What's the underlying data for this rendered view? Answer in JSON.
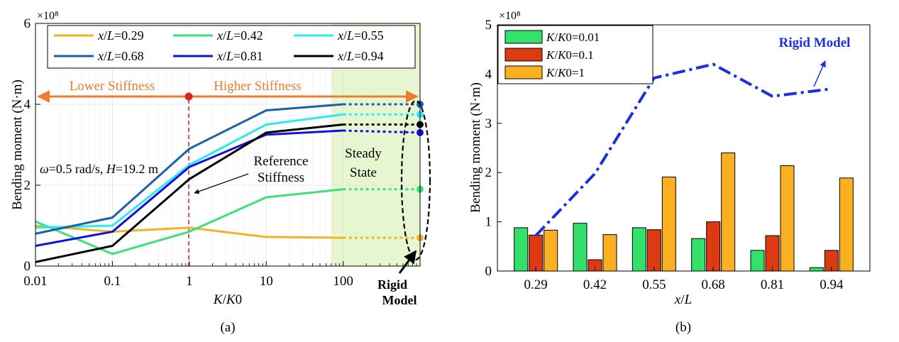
{
  "chart_data": [
    {
      "panel": "a",
      "type": "line",
      "xscale": "log",
      "xlabel": "K/K0",
      "ylabel": "Bending moment (N·m)",
      "exponent_label": "×10⁸",
      "panel_label": "(a)",
      "x": [
        0.01,
        0.1,
        1,
        10,
        100
      ],
      "x_rigid": 1000,
      "xticks": [
        "0.01",
        "0.1",
        "1",
        "10",
        "100"
      ],
      "ylim": [
        0,
        6
      ],
      "yticks": [
        "0",
        "2",
        "4",
        "6"
      ],
      "series": [
        {
          "name": "x/L=0.29",
          "color": "#f2b424",
          "values": [
            1.0,
            0.85,
            0.95,
            0.72,
            0.7
          ],
          "rigid": 0.7
        },
        {
          "name": "x/L=0.42",
          "color": "#3ee07a",
          "values": [
            1.1,
            0.3,
            0.85,
            1.7,
            1.9
          ],
          "rigid": 1.9
        },
        {
          "name": "x/L=0.55",
          "color": "#2ee8f2",
          "values": [
            0.95,
            1.0,
            2.5,
            3.5,
            3.75
          ],
          "rigid": 3.75
        },
        {
          "name": "x/L=0.68",
          "color": "#1a5fa8",
          "values": [
            0.8,
            1.2,
            2.9,
            3.85,
            4.0
          ],
          "rigid": 4.0
        },
        {
          "name": "x/L=0.81",
          "color": "#1010e0",
          "values": [
            0.5,
            0.85,
            2.45,
            3.25,
            3.35
          ],
          "rigid": 3.3
        },
        {
          "name": "x/L=0.94",
          "color": "#000000",
          "values": [
            0.1,
            0.5,
            2.15,
            3.3,
            3.5
          ],
          "rigid": 3.5
        }
      ],
      "annotations": {
        "lower_stiffness": "Lower Stiffness",
        "higher_stiffness": "Higher Stiffness",
        "condition": "ω=0.5 rad/s, H=19.2 m",
        "reference_line1": "Reference",
        "reference_line2": "Stiffness",
        "steady_line1": "Steady",
        "steady_line2": "State",
        "rigid_line1": "Rigid",
        "rigid_line2": "Model"
      },
      "colors": {
        "arrow": "#ee7b30",
        "reference": "#e02020",
        "steady_fill": "#e6f7cf"
      }
    },
    {
      "panel": "b",
      "type": "bar",
      "xlabel": "x/L",
      "ylabel": "Bending moment (N·m)",
      "exponent_label": "×10⁸",
      "panel_label": "(b)",
      "categories": [
        "0.29",
        "0.42",
        "0.55",
        "0.68",
        "0.81",
        "0.94"
      ],
      "ylim": [
        0,
        5
      ],
      "yticks": [
        "0",
        "1",
        "2",
        "3",
        "4",
        "5"
      ],
      "series": [
        {
          "name": "K/K0=0.01",
          "color": "#33e06a",
          "values": [
            0.88,
            0.97,
            0.88,
            0.66,
            0.42,
            0.07
          ]
        },
        {
          "name": "K/K0=0.1",
          "color": "#de3a12",
          "values": [
            0.73,
            0.23,
            0.84,
            1.0,
            0.72,
            0.42
          ]
        },
        {
          "name": "K/K0=1",
          "color": "#fbb022",
          "values": [
            0.83,
            0.74,
            1.91,
            2.4,
            2.14,
            1.89
          ]
        }
      ],
      "rigid_model": {
        "name": "Rigid Model",
        "color": "#1a2ee6",
        "values": [
          0.72,
          1.98,
          3.92,
          4.2,
          3.55,
          3.7
        ]
      }
    }
  ]
}
